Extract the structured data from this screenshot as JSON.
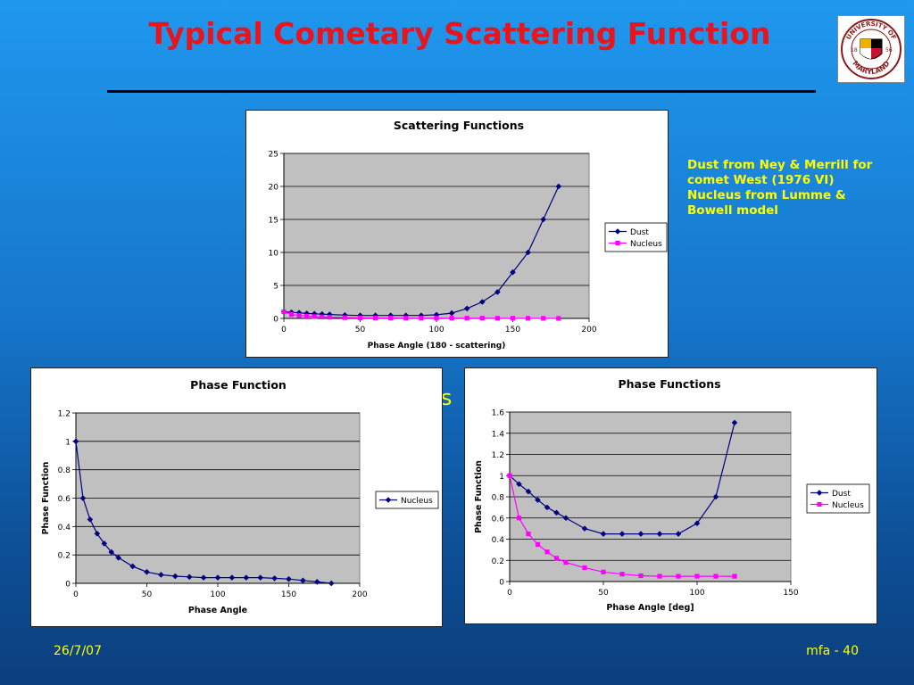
{
  "slide": {
    "title": "Typical Cometary Scattering Function",
    "caption": [
      "Dust from Ney & Merrill for",
      "comet West (1976 VI)",
      "Nucleus from Lumme &",
      "Bowell model"
    ],
    "partial_text": "rs",
    "footer_left": "26/7/07",
    "footer_right": "mfa - 40"
  },
  "logo": {
    "icon": "university-of-maryland-seal-icon",
    "text_top": "UNIVERSITY OF",
    "text_bottom": "MARYLAND",
    "year_left": "18",
    "year_right": "56"
  },
  "chart_data": [
    {
      "type": "line",
      "title": "Scattering Functions",
      "xlabel": "Phase Angle (180 - scattering)",
      "ylabel": "",
      "xlim": [
        0,
        200
      ],
      "ylim": [
        0,
        25
      ],
      "xticks": [
        0,
        50,
        100,
        150,
        200
      ],
      "yticks": [
        0,
        5,
        10,
        15,
        20,
        25
      ],
      "plot_bg": "#c0c0c0",
      "grid": true,
      "legend": "right",
      "series": [
        {
          "name": "Dust",
          "color": "#000080",
          "marker": "diamond",
          "points": [
            [
              0,
              1
            ],
            [
              5,
              0.92
            ],
            [
              10,
              0.85
            ],
            [
              15,
              0.76
            ],
            [
              20,
              0.7
            ],
            [
              25,
              0.65
            ],
            [
              30,
              0.6
            ],
            [
              40,
              0.5
            ],
            [
              50,
              0.45
            ],
            [
              60,
              0.45
            ],
            [
              70,
              0.45
            ],
            [
              80,
              0.45
            ],
            [
              90,
              0.45
            ],
            [
              100,
              0.55
            ],
            [
              110,
              0.8
            ],
            [
              120,
              1.5
            ],
            [
              130,
              2.5
            ],
            [
              140,
              4
            ],
            [
              150,
              7
            ],
            [
              160,
              10
            ],
            [
              170,
              15
            ],
            [
              180,
              20
            ]
          ]
        },
        {
          "name": "Nucleus",
          "color": "#ff00ff",
          "marker": "square",
          "points": [
            [
              0,
              1
            ],
            [
              5,
              0.6
            ],
            [
              10,
              0.45
            ],
            [
              15,
              0.35
            ],
            [
              20,
              0.28
            ],
            [
              25,
              0.22
            ],
            [
              30,
              0.18
            ],
            [
              40,
              0.12
            ],
            [
              50,
              0.08
            ],
            [
              60,
              0.06
            ],
            [
              70,
              0.05
            ],
            [
              80,
              0.04
            ],
            [
              90,
              0.04
            ],
            [
              100,
              0.04
            ],
            [
              110,
              0.04
            ],
            [
              120,
              0.04
            ],
            [
              130,
              0.04
            ],
            [
              140,
              0.03
            ],
            [
              150,
              0.03
            ],
            [
              160,
              0.02
            ],
            [
              170,
              0.01
            ],
            [
              180,
              0
            ]
          ]
        }
      ]
    },
    {
      "type": "line",
      "title": "Phase Function",
      "xlabel": "Phase Angle",
      "ylabel": "Phase Function",
      "xlim": [
        0,
        200
      ],
      "ylim": [
        0,
        1.2
      ],
      "xticks": [
        0,
        50,
        100,
        150,
        200
      ],
      "yticks": [
        0,
        0.2,
        0.4,
        0.6,
        0.8,
        1,
        1.2
      ],
      "plot_bg": "#c0c0c0",
      "grid": true,
      "legend": "right",
      "series": [
        {
          "name": "Nucleus",
          "color": "#000080",
          "marker": "diamond",
          "points": [
            [
              0,
              1
            ],
            [
              5,
              0.6
            ],
            [
              10,
              0.45
            ],
            [
              15,
              0.35
            ],
            [
              20,
              0.28
            ],
            [
              25,
              0.22
            ],
            [
              30,
              0.18
            ],
            [
              40,
              0.12
            ],
            [
              50,
              0.08
            ],
            [
              60,
              0.06
            ],
            [
              70,
              0.05
            ],
            [
              80,
              0.045
            ],
            [
              90,
              0.04
            ],
            [
              100,
              0.04
            ],
            [
              110,
              0.04
            ],
            [
              120,
              0.04
            ],
            [
              130,
              0.04
            ],
            [
              140,
              0.035
            ],
            [
              150,
              0.03
            ],
            [
              160,
              0.02
            ],
            [
              170,
              0.01
            ],
            [
              180,
              0
            ]
          ]
        }
      ]
    },
    {
      "type": "line",
      "title": "Phase Functions",
      "xlabel": "Phase Angle [deg]",
      "ylabel": "Phase Function",
      "xlim": [
        0,
        150
      ],
      "ylim": [
        0,
        1.6
      ],
      "xticks": [
        0,
        50,
        100,
        150
      ],
      "yticks": [
        0,
        0.2,
        0.4,
        0.6,
        0.8,
        1,
        1.2,
        1.4,
        1.6
      ],
      "plot_bg": "#c0c0c0",
      "grid": true,
      "legend": "right",
      "series": [
        {
          "name": "Dust",
          "color": "#000080",
          "marker": "diamond",
          "points": [
            [
              0,
              1
            ],
            [
              5,
              0.92
            ],
            [
              10,
              0.85
            ],
            [
              15,
              0.77
            ],
            [
              20,
              0.7
            ],
            [
              25,
              0.65
            ],
            [
              30,
              0.6
            ],
            [
              40,
              0.5
            ],
            [
              50,
              0.45
            ],
            [
              60,
              0.45
            ],
            [
              70,
              0.45
            ],
            [
              80,
              0.45
            ],
            [
              90,
              0.45
            ],
            [
              100,
              0.55
            ],
            [
              110,
              0.8
            ],
            [
              120,
              1.5
            ]
          ]
        },
        {
          "name": "Nucleus",
          "color": "#ff00ff",
          "marker": "square",
          "points": [
            [
              0,
              1
            ],
            [
              5,
              0.6
            ],
            [
              10,
              0.45
            ],
            [
              15,
              0.35
            ],
            [
              20,
              0.28
            ],
            [
              25,
              0.22
            ],
            [
              30,
              0.18
            ],
            [
              40,
              0.13
            ],
            [
              50,
              0.09
            ],
            [
              60,
              0.07
            ],
            [
              70,
              0.055
            ],
            [
              80,
              0.05
            ],
            [
              90,
              0.05
            ],
            [
              100,
              0.05
            ],
            [
              110,
              0.05
            ],
            [
              120,
              0.05
            ]
          ]
        }
      ]
    }
  ]
}
